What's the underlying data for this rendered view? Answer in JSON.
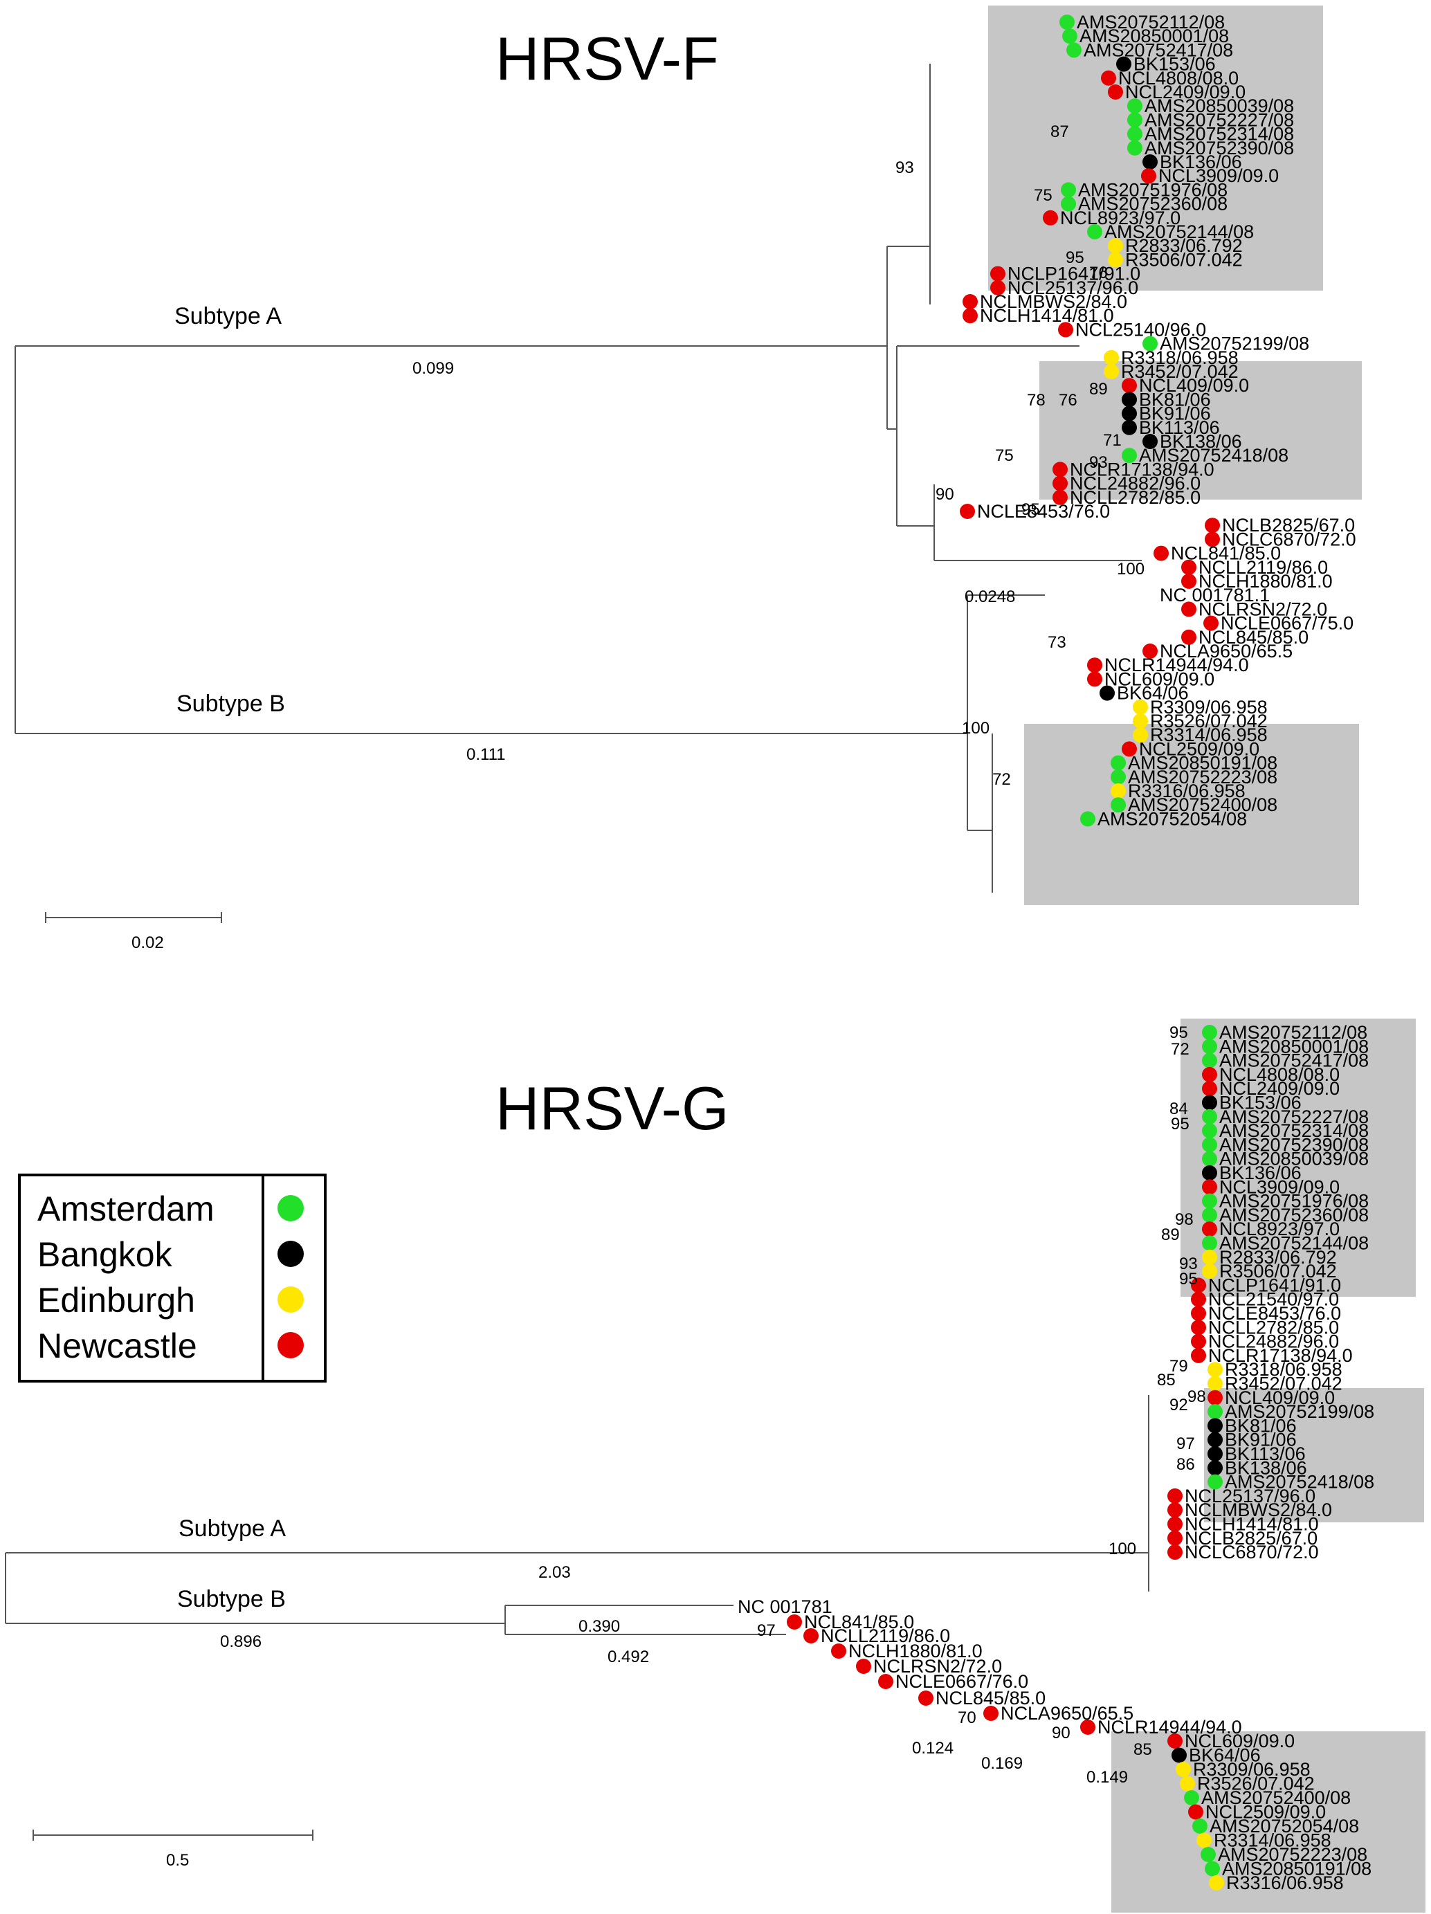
{
  "colors": {
    "Amsterdam": "#22e02a",
    "Bangkok": "#000000",
    "Edinburgh": "#ffe600",
    "Newcastle": "#e60000",
    "clade_box": "#c6c6c6"
  },
  "legend": {
    "items": [
      {
        "city": "Amsterdam",
        "color": "#22e02a"
      },
      {
        "city": "Bangkok",
        "color": "#000000"
      },
      {
        "city": "Edinburgh",
        "color": "#ffe600"
      },
      {
        "city": "Newcastle",
        "color": "#e60000"
      }
    ]
  },
  "panel_f": {
    "title": "HRSV-F",
    "subtype_a": "Subtype A",
    "subtype_b": "Subtype B",
    "branch_a": "0.099",
    "branch_b": "0.111",
    "branch_ab_mid": "0.0248",
    "scale": "0.02",
    "supports": [
      "93",
      "87",
      "75",
      "95",
      "76",
      "89",
      "78",
      "76",
      "71",
      "93",
      "75",
      "90",
      "95",
      "100",
      "73",
      "100",
      "72"
    ],
    "leaves": [
      {
        "name": "AMS20752112/08",
        "city": "Amsterdam"
      },
      {
        "name": "AMS20850001/08",
        "city": "Amsterdam"
      },
      {
        "name": "AMS20752417/08",
        "city": "Amsterdam"
      },
      {
        "name": "BK153/06",
        "city": "Bangkok"
      },
      {
        "name": "NCL4808/08.0",
        "city": "Newcastle"
      },
      {
        "name": "NCL2409/09.0",
        "city": "Newcastle"
      },
      {
        "name": "AMS20850039/08",
        "city": "Amsterdam"
      },
      {
        "name": "AMS20752227/08",
        "city": "Amsterdam"
      },
      {
        "name": "AMS20752314/08",
        "city": "Amsterdam"
      },
      {
        "name": "AMS20752390/08",
        "city": "Amsterdam"
      },
      {
        "name": "BK136/06",
        "city": "Bangkok"
      },
      {
        "name": "NCL3909/09.0",
        "city": "Newcastle"
      },
      {
        "name": "AMS20751976/08",
        "city": "Amsterdam"
      },
      {
        "name": "AMS20752360/08",
        "city": "Amsterdam"
      },
      {
        "name": "NCL8923/97.0",
        "city": "Newcastle"
      },
      {
        "name": "AMS20752144/08",
        "city": "Amsterdam"
      },
      {
        "name": "R2833/06.792",
        "city": "Edinburgh"
      },
      {
        "name": "R3506/07.042",
        "city": "Edinburgh"
      },
      {
        "name": "NCLP1641/91.0",
        "city": "Newcastle"
      },
      {
        "name": "NCL25137/96.0",
        "city": "Newcastle"
      },
      {
        "name": "NCLMBWS2/84.0",
        "city": "Newcastle"
      },
      {
        "name": "NCLH1414/81.0",
        "city": "Newcastle"
      },
      {
        "name": "NCL25140/96.0",
        "city": "Newcastle"
      },
      {
        "name": "AMS20752199/08",
        "city": "Amsterdam"
      },
      {
        "name": "R3318/06.958",
        "city": "Edinburgh"
      },
      {
        "name": "R3452/07.042",
        "city": "Edinburgh"
      },
      {
        "name": "NCL409/09.0",
        "city": "Newcastle"
      },
      {
        "name": "BK81/06",
        "city": "Bangkok"
      },
      {
        "name": "BK91/06",
        "city": "Bangkok"
      },
      {
        "name": "BK113/06",
        "city": "Bangkok"
      },
      {
        "name": "BK138/06",
        "city": "Bangkok"
      },
      {
        "name": "AMS20752418/08",
        "city": "Amsterdam"
      },
      {
        "name": "NCLR17138/94.0",
        "city": "Newcastle"
      },
      {
        "name": "NCL24882/96.0",
        "city": "Newcastle"
      },
      {
        "name": "NCLL2782/85.0",
        "city": "Newcastle"
      },
      {
        "name": "NCLE8453/76.0",
        "city": "Newcastle"
      },
      {
        "name": "NCLB2825/67.0",
        "city": "Newcastle"
      },
      {
        "name": "NCLC6870/72.0",
        "city": "Newcastle"
      },
      {
        "name": "NCL841/85.0",
        "city": "Newcastle"
      },
      {
        "name": "NCLL2119/86.0",
        "city": "Newcastle"
      },
      {
        "name": "NCLH1880/81.0",
        "city": "Newcastle"
      },
      {
        "name": "NC 001781.1",
        "city": ""
      },
      {
        "name": "NCLRSN2/72.0",
        "city": "Newcastle"
      },
      {
        "name": "NCLE0667/75.0",
        "city": "Newcastle"
      },
      {
        "name": "NCL845/85.0",
        "city": "Newcastle"
      },
      {
        "name": "NCLA9650/65.5",
        "city": "Newcastle"
      },
      {
        "name": "NCLR14944/94.0",
        "city": "Newcastle"
      },
      {
        "name": "NCL609/09.0",
        "city": "Newcastle"
      },
      {
        "name": "BK64/06",
        "city": "Bangkok"
      },
      {
        "name": "R3309/06.958",
        "city": "Edinburgh"
      },
      {
        "name": "R3526/07.042",
        "city": "Edinburgh"
      },
      {
        "name": "R3314/06.958",
        "city": "Edinburgh"
      },
      {
        "name": "NCL2509/09.0",
        "city": "Newcastle"
      },
      {
        "name": "AMS20850191/08",
        "city": "Amsterdam"
      },
      {
        "name": "AMS20752223/08",
        "city": "Amsterdam"
      },
      {
        "name": "R3316/06.958",
        "city": "Edinburgh"
      },
      {
        "name": "AMS20752400/08",
        "city": "Amsterdam"
      },
      {
        "name": "AMS20752054/08",
        "city": "Amsterdam"
      }
    ]
  },
  "panel_g": {
    "title": "HRSV-G",
    "subtype_a": "Subtype A",
    "subtype_b": "Subtype B",
    "branch_a": "2.03",
    "branch_b": "0.896",
    "scale": "0.5",
    "branch_values": [
      "0.390",
      "0.492",
      "0.124",
      "0.169",
      "0.149"
    ],
    "supports": [
      "95",
      "72",
      "84",
      "95",
      "98",
      "89",
      "93",
      "95",
      "79",
      "85",
      "98",
      "92",
      "97",
      "86",
      "100",
      "97",
      "70",
      "90",
      "85"
    ],
    "leaves_a": [
      {
        "name": "AMS20752112/08",
        "city": "Amsterdam"
      },
      {
        "name": "AMS20850001/08",
        "city": "Amsterdam"
      },
      {
        "name": "AMS20752417/08",
        "city": "Amsterdam"
      },
      {
        "name": "NCL4808/08.0",
        "city": "Newcastle"
      },
      {
        "name": "NCL2409/09.0",
        "city": "Newcastle"
      },
      {
        "name": "BK153/06",
        "city": "Bangkok"
      },
      {
        "name": "AMS20752227/08",
        "city": "Amsterdam"
      },
      {
        "name": "AMS20752314/08",
        "city": "Amsterdam"
      },
      {
        "name": "AMS20752390/08",
        "city": "Amsterdam"
      },
      {
        "name": "AMS20850039/08",
        "city": "Amsterdam"
      },
      {
        "name": "BK136/06",
        "city": "Bangkok"
      },
      {
        "name": "NCL3909/09.0",
        "city": "Newcastle"
      },
      {
        "name": "AMS20751976/08",
        "city": "Amsterdam"
      },
      {
        "name": "AMS20752360/08",
        "city": "Amsterdam"
      },
      {
        "name": "NCL8923/97.0",
        "city": "Newcastle"
      },
      {
        "name": "AMS20752144/08",
        "city": "Amsterdam"
      },
      {
        "name": "R2833/06.792",
        "city": "Edinburgh"
      },
      {
        "name": "R3506/07.042",
        "city": "Edinburgh"
      },
      {
        "name": "NCLP1641/91.0",
        "city": "Newcastle"
      },
      {
        "name": "NCL21540/97.0",
        "city": "Newcastle"
      },
      {
        "name": "NCLE8453/76.0",
        "city": "Newcastle"
      },
      {
        "name": "NCLL2782/85.0",
        "city": "Newcastle"
      },
      {
        "name": "NCL24882/96.0",
        "city": "Newcastle"
      },
      {
        "name": "NCLR17138/94.0",
        "city": "Newcastle"
      },
      {
        "name": "R3318/06.958",
        "city": "Edinburgh"
      },
      {
        "name": "R3452/07.042",
        "city": "Edinburgh"
      },
      {
        "name": "NCL409/09.0",
        "city": "Newcastle"
      },
      {
        "name": "AMS20752199/08",
        "city": "Amsterdam"
      },
      {
        "name": "BK81/06",
        "city": "Bangkok"
      },
      {
        "name": "BK91/06",
        "city": "Bangkok"
      },
      {
        "name": "BK113/06",
        "city": "Bangkok"
      },
      {
        "name": "BK138/06",
        "city": "Bangkok"
      },
      {
        "name": "AMS20752418/08",
        "city": "Amsterdam"
      },
      {
        "name": "NCL25137/96.0",
        "city": "Newcastle"
      },
      {
        "name": "NCLMBWS2/84.0",
        "city": "Newcastle"
      },
      {
        "name": "NCLH1414/81.0",
        "city": "Newcastle"
      },
      {
        "name": "NCLB2825/67.0",
        "city": "Newcastle"
      },
      {
        "name": "NCLC6870/72.0",
        "city": "Newcastle"
      }
    ],
    "leaves_b": [
      {
        "name": "NC 001781",
        "city": ""
      },
      {
        "name": "NCL841/85.0",
        "city": "Newcastle"
      },
      {
        "name": "NCLL2119/86.0",
        "city": "Newcastle"
      },
      {
        "name": "NCLH1880/81.0",
        "city": "Newcastle"
      },
      {
        "name": "NCLRSN2/72.0",
        "city": "Newcastle"
      },
      {
        "name": "NCLE0667/76.0",
        "city": "Newcastle"
      },
      {
        "name": "NCL845/85.0",
        "city": "Newcastle"
      },
      {
        "name": "NCLA9650/65.5",
        "city": "Newcastle"
      },
      {
        "name": "NCLR14944/94.0",
        "city": "Newcastle"
      }
    ],
    "leaves_b_box": [
      {
        "name": "NCL609/09.0",
        "city": "Newcastle"
      },
      {
        "name": "BK64/06",
        "city": "Bangkok"
      },
      {
        "name": "R3309/06.958",
        "city": "Edinburgh"
      },
      {
        "name": "R3526/07.042",
        "city": "Edinburgh"
      },
      {
        "name": "AMS20752400/08",
        "city": "Amsterdam"
      },
      {
        "name": "NCL2509/09.0",
        "city": "Newcastle"
      },
      {
        "name": "AMS20752054/08",
        "city": "Amsterdam"
      },
      {
        "name": "R3314/06.958",
        "city": "Edinburgh"
      },
      {
        "name": "AMS20752223/08",
        "city": "Amsterdam"
      },
      {
        "name": "AMS20850191/08",
        "city": "Amsterdam"
      },
      {
        "name": "R3316/06.958",
        "city": "Edinburgh"
      }
    ]
  }
}
